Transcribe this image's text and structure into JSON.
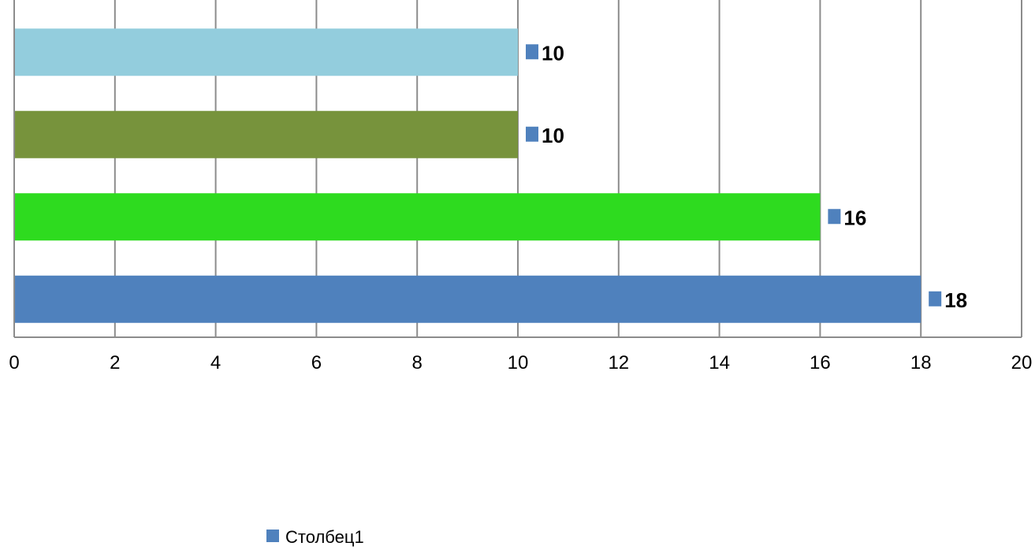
{
  "chart_data": {
    "type": "bar",
    "orientation": "horizontal",
    "categories": [
      "",
      "",
      "",
      ""
    ],
    "series": [
      {
        "name": "Столбец1",
        "values": [
          18,
          16,
          10,
          10
        ]
      }
    ],
    "bar_colors": [
      "#4F81BD",
      "#2EDB1F",
      "#77933C",
      "#93CDDD"
    ],
    "legend_color": "#4F81BD",
    "xlim": [
      0,
      20
    ],
    "x_ticks": [
      0,
      2,
      4,
      6,
      8,
      10,
      12,
      14,
      16,
      18,
      20
    ],
    "x_tick_labels": [
      "0",
      "2",
      "4",
      "6",
      "8",
      "10",
      "12",
      "14",
      "16",
      "18",
      "20"
    ],
    "data_labels": [
      "18",
      "16",
      "10",
      "10"
    ],
    "title": "",
    "xlabel": "",
    "ylabel": "",
    "grid": "vertical",
    "legend": {
      "position": "bottom",
      "entries": [
        "Столбец1"
      ]
    }
  }
}
